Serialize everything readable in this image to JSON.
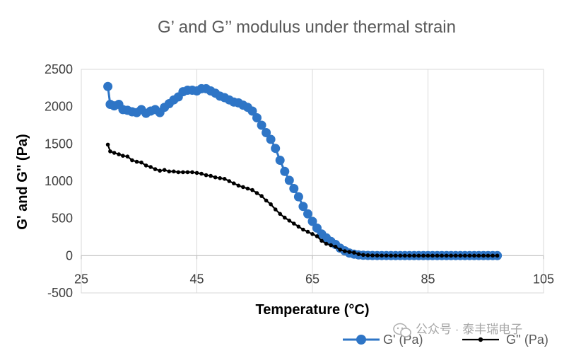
{
  "chart_data": {
    "type": "scatter",
    "title": "G’ and G’’ modulus under thermal strain",
    "xlabel": "Temperature (°C)",
    "ylabel": "G' and G'' (Pa)",
    "xlim": [
      25,
      105
    ],
    "ylim": [
      -500,
      2500
    ],
    "x_ticks": [
      "25",
      "45",
      "65",
      "85",
      "105"
    ],
    "y_ticks": [
      "-500",
      "0",
      "500",
      "1000",
      "1500",
      "2000",
      "2500"
    ],
    "grid": "vertical",
    "legend_position": "bottom-right",
    "colors": {
      "series1": "#2e75c6",
      "series2": "#000000",
      "grid": "#d9d9d9"
    },
    "series": [
      {
        "name": "G' (Pa)",
        "marker": "circle",
        "points": [
          [
            29.6,
            2270
          ],
          [
            30.0,
            2030
          ],
          [
            30.7,
            2010
          ],
          [
            31.5,
            2030
          ],
          [
            32.2,
            1960
          ],
          [
            33.0,
            1950
          ],
          [
            33.8,
            1930
          ],
          [
            34.6,
            1920
          ],
          [
            35.4,
            1960
          ],
          [
            36.2,
            1910
          ],
          [
            37.0,
            1940
          ],
          [
            37.8,
            1960
          ],
          [
            38.6,
            1920
          ],
          [
            39.4,
            1990
          ],
          [
            40.2,
            2040
          ],
          [
            41.0,
            2090
          ],
          [
            41.8,
            2130
          ],
          [
            42.6,
            2200
          ],
          [
            43.4,
            2220
          ],
          [
            44.2,
            2220
          ],
          [
            45.0,
            2210
          ],
          [
            45.8,
            2240
          ],
          [
            46.6,
            2240
          ],
          [
            47.4,
            2210
          ],
          [
            48.2,
            2180
          ],
          [
            49.0,
            2140
          ],
          [
            49.8,
            2120
          ],
          [
            50.6,
            2090
          ],
          [
            51.4,
            2060
          ],
          [
            52.2,
            2050
          ],
          [
            53.0,
            2020
          ],
          [
            53.8,
            1990
          ],
          [
            54.6,
            1940
          ],
          [
            55.4,
            1850
          ],
          [
            56.2,
            1750
          ],
          [
            57.0,
            1650
          ],
          [
            57.8,
            1560
          ],
          [
            58.6,
            1440
          ],
          [
            59.4,
            1280
          ],
          [
            60.2,
            1130
          ],
          [
            61.0,
            1010
          ],
          [
            61.8,
            900
          ],
          [
            62.6,
            790
          ],
          [
            63.4,
            660
          ],
          [
            64.2,
            560
          ],
          [
            65.0,
            460
          ],
          [
            65.8,
            370
          ],
          [
            66.6,
            290
          ],
          [
            67.4,
            240
          ],
          [
            68.2,
            190
          ],
          [
            69.0,
            150
          ],
          [
            69.8,
            100
          ],
          [
            70.6,
            65
          ],
          [
            71.4,
            35
          ],
          [
            72.2,
            20
          ],
          [
            73.0,
            10
          ],
          [
            73.8,
            5
          ],
          [
            74.6,
            3
          ],
          [
            75.4,
            2
          ],
          [
            76.2,
            1
          ],
          [
            77.0,
            1
          ],
          [
            77.8,
            1
          ],
          [
            78.6,
            0
          ],
          [
            79.4,
            0
          ],
          [
            80.2,
            0
          ],
          [
            81.0,
            0
          ],
          [
            81.8,
            0
          ],
          [
            82.6,
            0
          ],
          [
            83.4,
            0
          ],
          [
            84.2,
            0
          ],
          [
            85.0,
            0
          ],
          [
            85.8,
            0
          ],
          [
            86.6,
            0
          ],
          [
            87.4,
            0
          ],
          [
            88.2,
            0
          ],
          [
            89.0,
            0
          ],
          [
            89.8,
            0
          ],
          [
            90.6,
            0
          ],
          [
            91.4,
            0
          ],
          [
            92.2,
            0
          ],
          [
            93.0,
            0
          ],
          [
            93.8,
            0
          ],
          [
            94.6,
            0
          ],
          [
            95.4,
            0
          ],
          [
            96.2,
            0
          ],
          [
            97.0,
            0
          ]
        ]
      },
      {
        "name": "G'' (Pa)",
        "marker": "dot",
        "points": [
          [
            29.6,
            1490
          ],
          [
            30.0,
            1400
          ],
          [
            30.7,
            1380
          ],
          [
            31.5,
            1360
          ],
          [
            32.2,
            1340
          ],
          [
            33.0,
            1330
          ],
          [
            33.8,
            1280
          ],
          [
            34.6,
            1260
          ],
          [
            35.4,
            1250
          ],
          [
            36.2,
            1210
          ],
          [
            37.0,
            1190
          ],
          [
            37.8,
            1160
          ],
          [
            38.6,
            1140
          ],
          [
            39.4,
            1150
          ],
          [
            40.2,
            1130
          ],
          [
            41.0,
            1130
          ],
          [
            41.8,
            1120
          ],
          [
            42.6,
            1120
          ],
          [
            43.4,
            1120
          ],
          [
            44.2,
            1120
          ],
          [
            45.0,
            1110
          ],
          [
            45.8,
            1100
          ],
          [
            46.6,
            1080
          ],
          [
            47.4,
            1070
          ],
          [
            48.2,
            1050
          ],
          [
            49.0,
            1040
          ],
          [
            49.8,
            1030
          ],
          [
            50.6,
            1000
          ],
          [
            51.4,
            970
          ],
          [
            52.2,
            940
          ],
          [
            53.0,
            920
          ],
          [
            53.8,
            900
          ],
          [
            54.6,
            880
          ],
          [
            55.4,
            840
          ],
          [
            56.2,
            800
          ],
          [
            57.0,
            740
          ],
          [
            57.8,
            690
          ],
          [
            58.6,
            620
          ],
          [
            59.4,
            560
          ],
          [
            60.2,
            510
          ],
          [
            61.0,
            470
          ],
          [
            61.8,
            430
          ],
          [
            62.6,
            390
          ],
          [
            63.4,
            350
          ],
          [
            64.2,
            320
          ],
          [
            65.0,
            290
          ],
          [
            65.8,
            260
          ],
          [
            66.6,
            200
          ],
          [
            67.4,
            160
          ],
          [
            68.2,
            140
          ],
          [
            69.0,
            120
          ],
          [
            69.8,
            80
          ],
          [
            70.6,
            60
          ],
          [
            71.4,
            50
          ],
          [
            72.2,
            40
          ],
          [
            73.0,
            20
          ],
          [
            73.8,
            10
          ],
          [
            74.6,
            5
          ],
          [
            75.4,
            3
          ],
          [
            76.2,
            2
          ],
          [
            77.0,
            1
          ],
          [
            77.8,
            1
          ],
          [
            78.6,
            0
          ],
          [
            79.4,
            0
          ],
          [
            80.2,
            0
          ],
          [
            81.0,
            0
          ],
          [
            81.8,
            0
          ],
          [
            82.6,
            0
          ],
          [
            83.4,
            0
          ],
          [
            84.2,
            0
          ],
          [
            85.0,
            0
          ],
          [
            85.8,
            0
          ],
          [
            86.6,
            0
          ],
          [
            87.4,
            0
          ],
          [
            88.2,
            0
          ],
          [
            89.0,
            0
          ],
          [
            89.8,
            0
          ],
          [
            90.6,
            0
          ],
          [
            91.4,
            0
          ],
          [
            92.2,
            0
          ],
          [
            93.0,
            0
          ],
          [
            93.8,
            0
          ],
          [
            94.6,
            0
          ],
          [
            95.4,
            0
          ],
          [
            96.2,
            0
          ],
          [
            97.0,
            0
          ]
        ]
      }
    ]
  },
  "watermark": "公众号 · 泰丰瑞电子",
  "watermark_icon": "wechat-icon"
}
